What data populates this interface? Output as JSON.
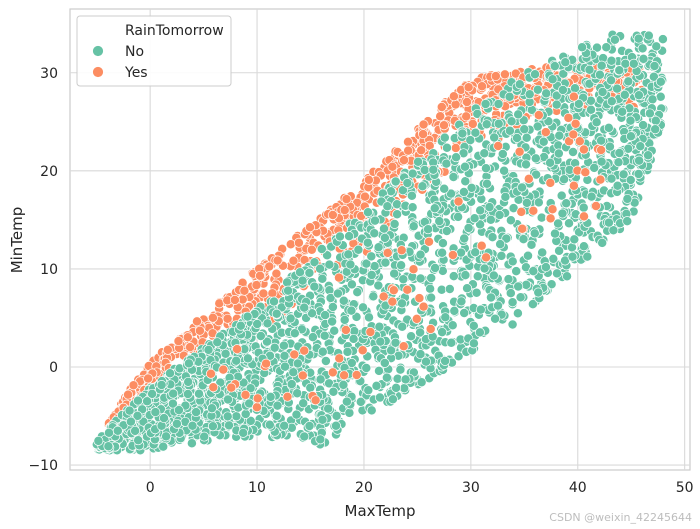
{
  "chart_data": {
    "type": "scatter",
    "title": "",
    "xlabel": "MaxTemp",
    "ylabel": "MinTemp",
    "xlim": [
      -7.5,
      50.5
    ],
    "ylim": [
      -10.5,
      36.5
    ],
    "xticks": [
      0,
      10,
      20,
      30,
      40,
      50
    ],
    "yticks": [
      -10,
      0,
      10,
      20,
      30
    ],
    "grid": true,
    "legend": {
      "title": "RainTomorrow",
      "placement": "top-left",
      "entries": [
        {
          "label": "No",
          "color": "#66c2a5"
        },
        {
          "label": "Yes",
          "color": "#fc8d62"
        }
      ]
    },
    "series": [
      {
        "name": "No",
        "color": "#66c2a5",
        "description": "dense band of points",
        "envelope_upper": [
          [
            -5,
            -7.5
          ],
          [
            0,
            -2
          ],
          [
            10,
            6
          ],
          [
            20,
            16
          ],
          [
            30,
            26
          ],
          [
            35,
            30
          ],
          [
            43,
            34
          ]
        ],
        "envelope_lower": [
          [
            -1,
            -8.5
          ],
          [
            10,
            -7
          ],
          [
            16,
            -8
          ],
          [
            25,
            -2
          ],
          [
            35,
            5
          ],
          [
            45,
            15
          ],
          [
            48,
            25
          ]
        ],
        "x_range": [
          -5,
          48
        ],
        "y_range": [
          -8.5,
          34
        ]
      },
      {
        "name": "Yes",
        "color": "#fc8d62",
        "description": "points concentrated along the upper-left edge of the band (MinTemp close to MaxTemp)",
        "envelope_upper": [
          [
            -4,
            -5.5
          ],
          [
            0,
            0.5
          ],
          [
            10,
            10
          ],
          [
            20,
            19
          ],
          [
            30,
            29.5
          ],
          [
            40,
            31
          ]
        ],
        "envelope_lower": [
          [
            -3,
            -7
          ],
          [
            10,
            3
          ],
          [
            20,
            11
          ],
          [
            30,
            22
          ],
          [
            40,
            26
          ]
        ],
        "x_range": [
          -4,
          46
        ],
        "y_range": [
          -7,
          31.5
        ]
      }
    ]
  },
  "watermark": "CSDN @weixin_42245644"
}
